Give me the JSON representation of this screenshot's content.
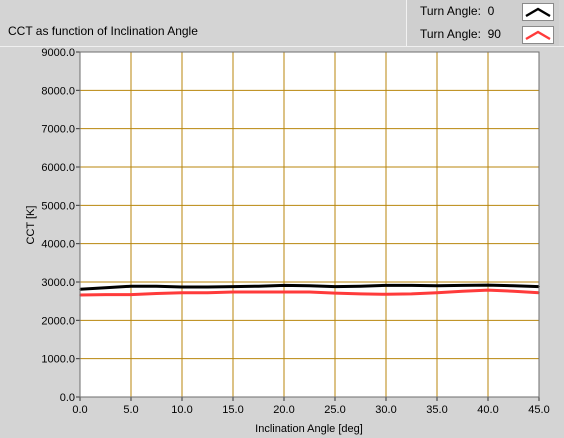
{
  "title": "CCT as function of Inclination Angle",
  "legend": [
    {
      "label": "Turn Angle:",
      "value": "0",
      "color": "#000000"
    },
    {
      "label": "Turn Angle:",
      "value": "90",
      "color": "#ff3b3b"
    }
  ],
  "chart_data": {
    "type": "line",
    "xlabel": "Inclination Angle [deg]",
    "ylabel": "CCT [K]",
    "xlim": [
      0,
      45
    ],
    "ylim": [
      0,
      9000
    ],
    "grid": true,
    "legend_position": "top-right",
    "x_ticks": [
      "0.0",
      "5.0",
      "10.0",
      "15.0",
      "20.0",
      "25.0",
      "30.0",
      "35.0",
      "40.0",
      "45.0"
    ],
    "y_ticks": [
      "0.0",
      "1000.0",
      "2000.0",
      "3000.0",
      "4000.0",
      "5000.0",
      "6000.0",
      "7000.0",
      "8000.0",
      "9000.0"
    ],
    "x": [
      0,
      2.5,
      5,
      7.5,
      10,
      12.5,
      15,
      17.5,
      20,
      22.5,
      25,
      27.5,
      30,
      32.5,
      35,
      37.5,
      40,
      42.5,
      45
    ],
    "series": [
      {
        "name": "Turn Angle: 0",
        "color": "#000000",
        "values": [
          2810,
          2850,
          2890,
          2890,
          2870,
          2870,
          2880,
          2890,
          2910,
          2900,
          2880,
          2890,
          2910,
          2910,
          2900,
          2910,
          2920,
          2900,
          2880
        ]
      },
      {
        "name": "Turn Angle: 90",
        "color": "#ff3b3b",
        "values": [
          2660,
          2670,
          2670,
          2700,
          2720,
          2720,
          2740,
          2740,
          2740,
          2740,
          2710,
          2690,
          2680,
          2690,
          2720,
          2760,
          2790,
          2760,
          2720
        ]
      }
    ]
  }
}
